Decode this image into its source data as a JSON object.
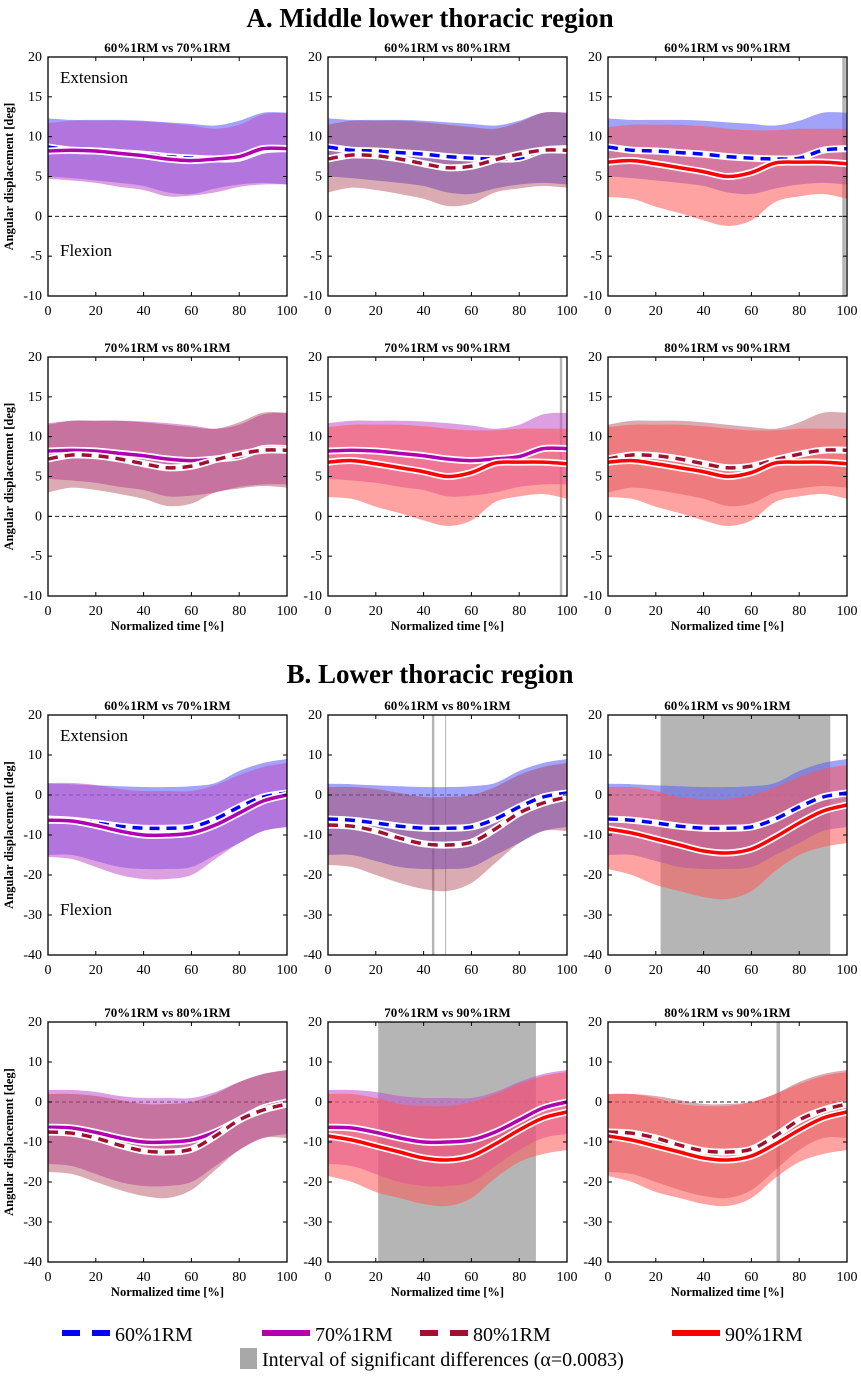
{
  "chart_data": {
    "type": "line",
    "x": [
      0,
      10,
      20,
      30,
      40,
      50,
      60,
      70,
      80,
      90,
      100
    ],
    "xlabel": "Normalized time [%]",
    "ylabel": "Angular displacement [deg]",
    "xlim": [
      0,
      100
    ],
    "xticks": [
      0,
      20,
      40,
      60,
      80,
      100
    ],
    "annotations": {
      "upper": "Extension",
      "lower": "Flexion"
    },
    "conditions": [
      {
        "key": "60",
        "name": "60%1RM",
        "color": "#0000ff",
        "band": "#6464f5",
        "band_opacity": 0.6,
        "dashed": true
      },
      {
        "key": "70",
        "name": "70%1RM",
        "color": "#b000b0",
        "band": "#c050c8",
        "band_opacity": 0.55,
        "dashed": false
      },
      {
        "key": "80",
        "name": "80%1RM",
        "color": "#a01030",
        "band": "#a83848",
        "band_opacity": 0.42,
        "dashed": true
      },
      {
        "key": "90",
        "name": "90%1RM",
        "color": "#ff0000",
        "band": "#ff5555",
        "band_opacity": 0.55,
        "dashed": false
      }
    ],
    "significance": {
      "label": "Interval of significant differences (α=0.0083)",
      "color": "#a8a8a8"
    },
    "regions": [
      {
        "title": "A. Middle lower thoracic region",
        "ylim": [
          -10,
          20
        ],
        "yticks": [
          -10,
          -5,
          0,
          5,
          10,
          15,
          20
        ],
        "series": {
          "60": {
            "mean": [
              8.7,
              8.3,
              8.2,
              8.0,
              7.8,
              7.5,
              7.3,
              7.2,
              7.3,
              8.3,
              8.5
            ],
            "upper": [
              12.3,
              12.1,
              12.1,
              12.1,
              12.0,
              11.8,
              11.6,
              11.4,
              12.0,
              13.0,
              13.0
            ],
            "lower": [
              5.0,
              4.8,
              4.5,
              4.2,
              3.8,
              3.0,
              2.8,
              3.5,
              4.0,
              4.2,
              4.0
            ]
          },
          "70": {
            "mean": [
              8.2,
              8.3,
              8.2,
              7.9,
              7.6,
              7.2,
              7.0,
              7.2,
              7.5,
              8.5,
              8.5
            ],
            "upper": [
              11.7,
              12.0,
              12.0,
              12.0,
              11.9,
              11.7,
              11.4,
              11.0,
              11.5,
              12.8,
              13.0
            ],
            "lower": [
              4.7,
              4.5,
              4.2,
              3.7,
              3.3,
              2.5,
              2.6,
              3.0,
              3.7,
              4.0,
              4.0
            ]
          },
          "80": {
            "mean": [
              7.2,
              7.7,
              7.6,
              7.2,
              6.6,
              6.1,
              6.3,
              7.1,
              7.8,
              8.3,
              8.3
            ],
            "upper": [
              11.5,
              12.0,
              12.0,
              12.0,
              11.8,
              11.5,
              11.2,
              11.0,
              11.8,
              13.0,
              13.0
            ],
            "lower": [
              3.0,
              3.6,
              3.3,
              2.8,
              2.2,
              1.3,
              1.6,
              3.0,
              3.5,
              3.8,
              3.6
            ]
          },
          "90": {
            "mean": [
              6.8,
              7.0,
              6.6,
              6.1,
              5.6,
              5.0,
              5.5,
              6.7,
              6.8,
              6.8,
              6.6
            ],
            "upper": [
              11.2,
              11.5,
              11.5,
              11.5,
              11.3,
              11.0,
              10.8,
              10.8,
              11.0,
              11.0,
              11.0
            ],
            "lower": [
              2.4,
              2.2,
              1.2,
              0.4,
              -0.5,
              -1.2,
              -0.5,
              1.8,
              2.5,
              2.8,
              2.2
            ]
          }
        },
        "panels": [
          {
            "title": "60%1RM vs 70%1RM",
            "pair": [
              "60",
              "70"
            ],
            "intervals": []
          },
          {
            "title": "60%1RM vs 80%1RM",
            "pair": [
              "60",
              "80"
            ],
            "intervals": []
          },
          {
            "title": "60%1RM vs 90%1RM",
            "pair": [
              "60",
              "90"
            ],
            "intervals": [
              [
                98,
                99.5
              ]
            ]
          },
          {
            "title": "70%1RM vs 80%1RM",
            "pair": [
              "70",
              "80"
            ],
            "intervals": []
          },
          {
            "title": "70%1RM vs 90%1RM",
            "pair": [
              "70",
              "90"
            ],
            "intervals": [
              [
                97,
                98
              ]
            ]
          },
          {
            "title": "80%1RM vs 90%1RM",
            "pair": [
              "80",
              "90"
            ],
            "intervals": []
          }
        ]
      },
      {
        "title": "B. Lower thoracic region",
        "ylim": [
          -40,
          20
        ],
        "yticks": [
          -40,
          -30,
          -20,
          -10,
          0,
          10,
          20
        ],
        "series": {
          "60": {
            "mean": [
              -6,
              -6.3,
              -7,
              -7.8,
              -8.3,
              -8.3,
              -8,
              -6,
              -3,
              -0.5,
              0.5
            ],
            "upper": [
              2.8,
              2.7,
              2.4,
              2.2,
              2,
              2,
              2.2,
              3,
              6,
              8,
              9
            ],
            "lower": [
              -15,
              -15,
              -16.5,
              -18,
              -18.5,
              -18.5,
              -18,
              -15,
              -12,
              -9,
              -8
            ]
          },
          "70": {
            "mean": [
              -6.3,
              -6.5,
              -7.6,
              -9,
              -10,
              -10,
              -9.5,
              -7.5,
              -4.5,
              -1.5,
              0
            ],
            "upper": [
              3,
              3,
              2.5,
              1.5,
              1,
              1,
              1,
              2.5,
              5,
              7,
              8
            ],
            "lower": [
              -15.5,
              -16,
              -18,
              -20,
              -21,
              -21,
              -20,
              -16,
              -12,
              -9,
              -8
            ]
          },
          "80": {
            "mean": [
              -7.5,
              -7.8,
              -9,
              -10.8,
              -12.2,
              -12.5,
              -11.8,
              -8.5,
              -4.5,
              -2,
              -0.5
            ],
            "upper": [
              2,
              2,
              1.5,
              0.5,
              -0.5,
              -0.5,
              0,
              2,
              5,
              7,
              8
            ],
            "lower": [
              -17.5,
              -18,
              -20,
              -22,
              -23.5,
              -24,
              -22,
              -17,
              -12,
              -9,
              -9
            ]
          },
          "90": {
            "mean": [
              -8.5,
              -9.5,
              -11,
              -12.5,
              -14,
              -14.5,
              -13.5,
              -10.5,
              -7,
              -4,
              -2.5
            ],
            "upper": [
              2,
              2,
              1,
              -0.5,
              -1,
              -1,
              0,
              2,
              4.5,
              6.5,
              7.5
            ],
            "lower": [
              -18.5,
              -20,
              -22.5,
              -24,
              -25.5,
              -26,
              -24,
              -19,
              -15,
              -13,
              -12
            ]
          }
        },
        "panels": [
          {
            "title": "60%1RM vs 70%1RM",
            "pair": [
              "60",
              "70"
            ],
            "intervals": []
          },
          {
            "title": "60%1RM vs 80%1RM",
            "pair": [
              "60",
              "80"
            ],
            "intervals": [
              [
                43.5,
                44.5
              ],
              [
                49,
                49.3
              ]
            ]
          },
          {
            "title": "60%1RM vs 90%1RM",
            "pair": [
              "60",
              "90"
            ],
            "intervals": [
              [
                22,
                93
              ]
            ]
          },
          {
            "title": "70%1RM vs 80%1RM",
            "pair": [
              "70",
              "80"
            ],
            "intervals": []
          },
          {
            "title": "70%1RM vs 90%1RM",
            "pair": [
              "70",
              "90"
            ],
            "intervals": [
              [
                21,
                87
              ]
            ]
          },
          {
            "title": "80%1RM vs 90%1RM",
            "pair": [
              "80",
              "90"
            ],
            "intervals": [
              [
                70.5,
                72
              ]
            ]
          }
        ]
      }
    ]
  }
}
